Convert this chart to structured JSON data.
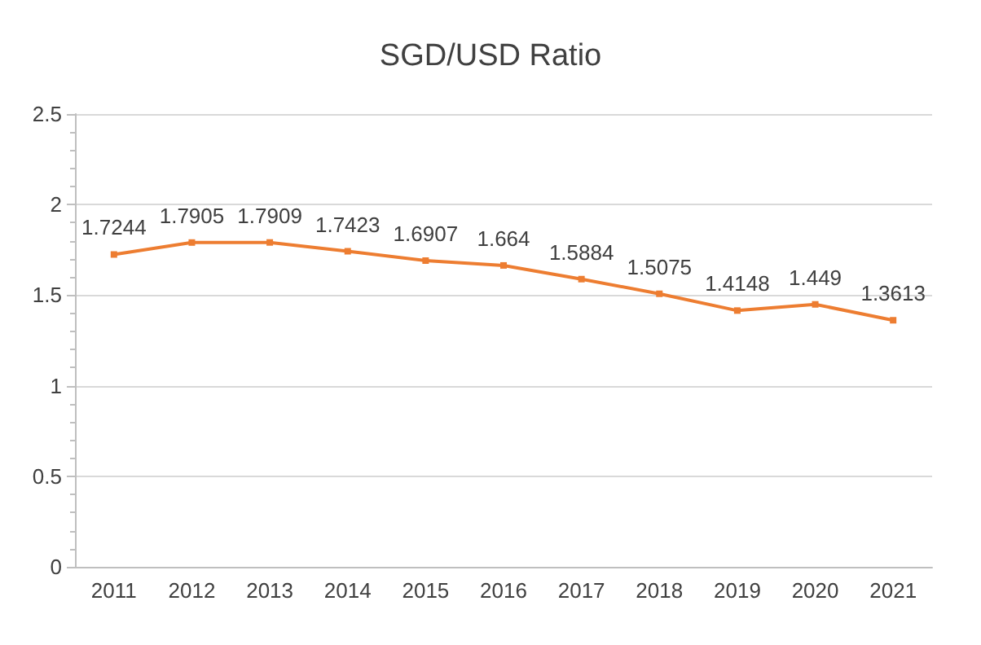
{
  "chart_data": {
    "type": "line",
    "title": "SGD/USD Ratio",
    "categories": [
      "2011",
      "2012",
      "2013",
      "2014",
      "2015",
      "2016",
      "2017",
      "2018",
      "2019",
      "2020",
      "2021"
    ],
    "series": [
      {
        "color": "#ed7d31",
        "values": [
          1.7244,
          1.7905,
          1.7909,
          1.7423,
          1.6907,
          1.664,
          1.5884,
          1.5075,
          1.4148,
          1.449,
          1.3613
        ]
      }
    ],
    "ylim": [
      0,
      2.5
    ],
    "yticks": [
      0,
      0.5,
      1,
      1.5,
      2,
      2.5
    ],
    "grid": "y",
    "data_labels": true,
    "marker": "square",
    "line_style": "solid"
  }
}
